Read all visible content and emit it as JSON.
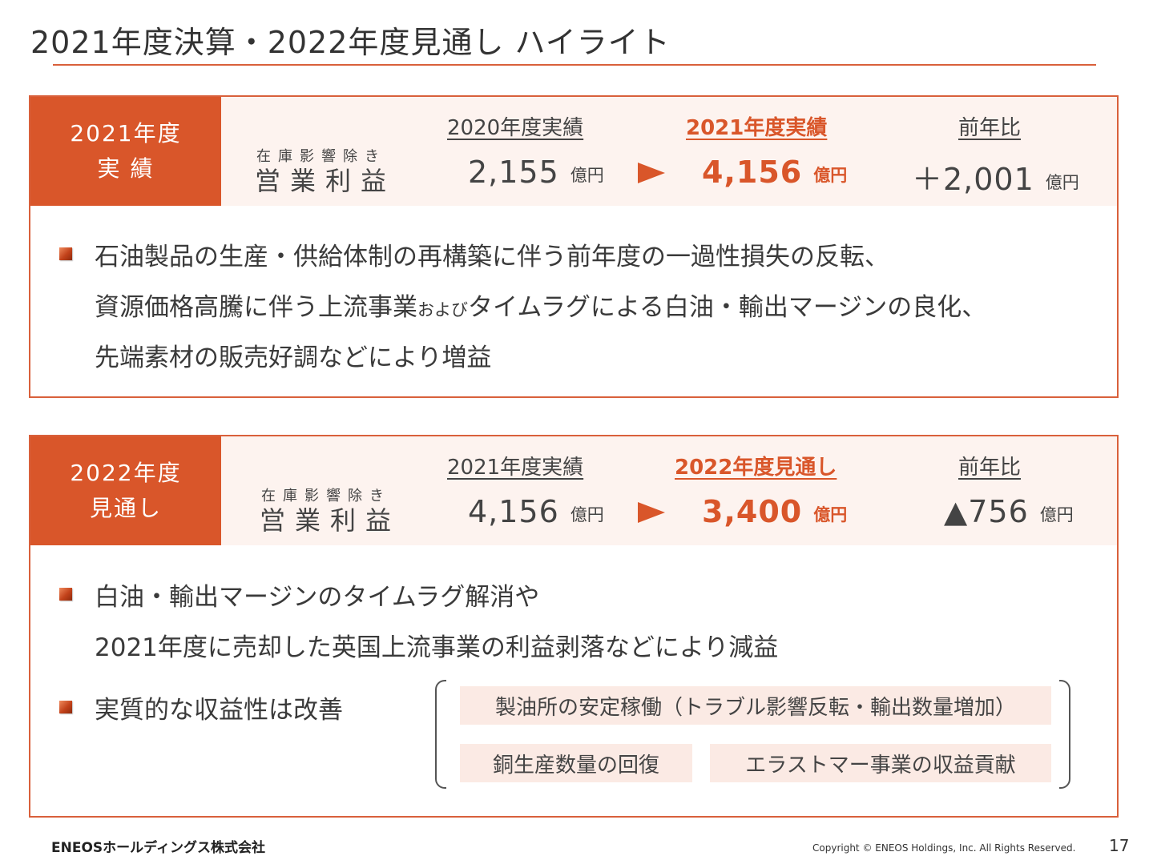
{
  "page": {
    "title": "2021年度決算・2022年度見通し ハイライト",
    "page_number": "17"
  },
  "section1": {
    "tag_line1": "2021年度",
    "tag_line2": "実 績",
    "metric_small": "在庫影響除き",
    "metric_big": "営業利益",
    "col1_head": "2020年度実績",
    "col1_value": "2,155",
    "col2_head": "2021年度実績",
    "col2_value": "4,156",
    "col3_head": "前年比",
    "col3_value": "＋2,001",
    "unit": "億円",
    "bullet1": {
      "line1": "石油製品の生産・供給体制の再構築に伴う前年度の一過性損失の反転、",
      "line2_a": "資源価格高騰に伴う上流事業",
      "line2_small": "および",
      "line2_b": "タイムラグによる白油・輸出マージンの良化、",
      "line3": "先端素材の販売好調などにより増益"
    }
  },
  "section2": {
    "tag_line1": "2022年度",
    "tag_line2": "見通し",
    "metric_small": "在庫影響除き",
    "metric_big": "営業利益",
    "col1_head": "2021年度実績",
    "col1_value": "4,156",
    "col2_head": "2022年度見通し",
    "col2_value": "3,400",
    "col3_head": "前年比",
    "col3_value": "▲756",
    "unit": "億円",
    "bullet1": {
      "line1": "白油・輸出マージンのタイムラグ解消や",
      "line2": "2021年度に売却した英国上流事業の利益剥落などにより減益"
    },
    "bullet2": "実質的な収益性は改善",
    "chips": [
      "製油所の安定稼働（トラブル影響反転・輸出数量増加）",
      "銅生産数量の回復",
      "エラストマー事業の収益貢献"
    ]
  },
  "footer": {
    "logo": "ENEOSホールディングス株式会社",
    "copyright": "Copyright © ENEOS Holdings, Inc. All Rights Reserved."
  },
  "colors": {
    "accent": "#d9562a",
    "band": "#fdf3ef",
    "chip": "#fbeae4"
  }
}
